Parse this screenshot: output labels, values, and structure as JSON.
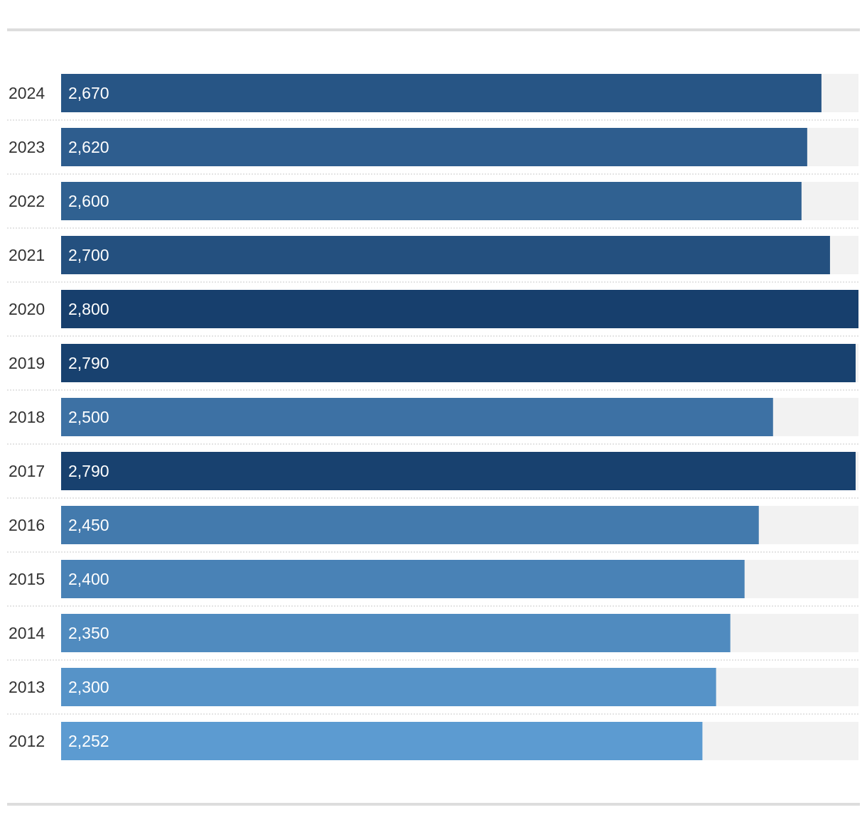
{
  "chart_data": {
    "type": "bar",
    "orientation": "horizontal",
    "categories": [
      "2024",
      "2023",
      "2022",
      "2021",
      "2020",
      "2019",
      "2018",
      "2017",
      "2016",
      "2015",
      "2014",
      "2013",
      "2012"
    ],
    "values": [
      2670,
      2620,
      2600,
      2700,
      2800,
      2790,
      2500,
      2790,
      2450,
      2400,
      2350,
      2300,
      2252
    ],
    "value_labels": [
      "2,670",
      "2,620",
      "2,600",
      "2,700",
      "2,800",
      "2,790",
      "2,500",
      "2,790",
      "2,450",
      "2,400",
      "2,350",
      "2,300",
      "2,252"
    ],
    "xlim": [
      0,
      2800
    ],
    "color_scale": {
      "low": "#5c9bd1",
      "high": "#173f6d"
    },
    "track_color": "#f2f2f2",
    "grid": false,
    "legend": "none"
  }
}
